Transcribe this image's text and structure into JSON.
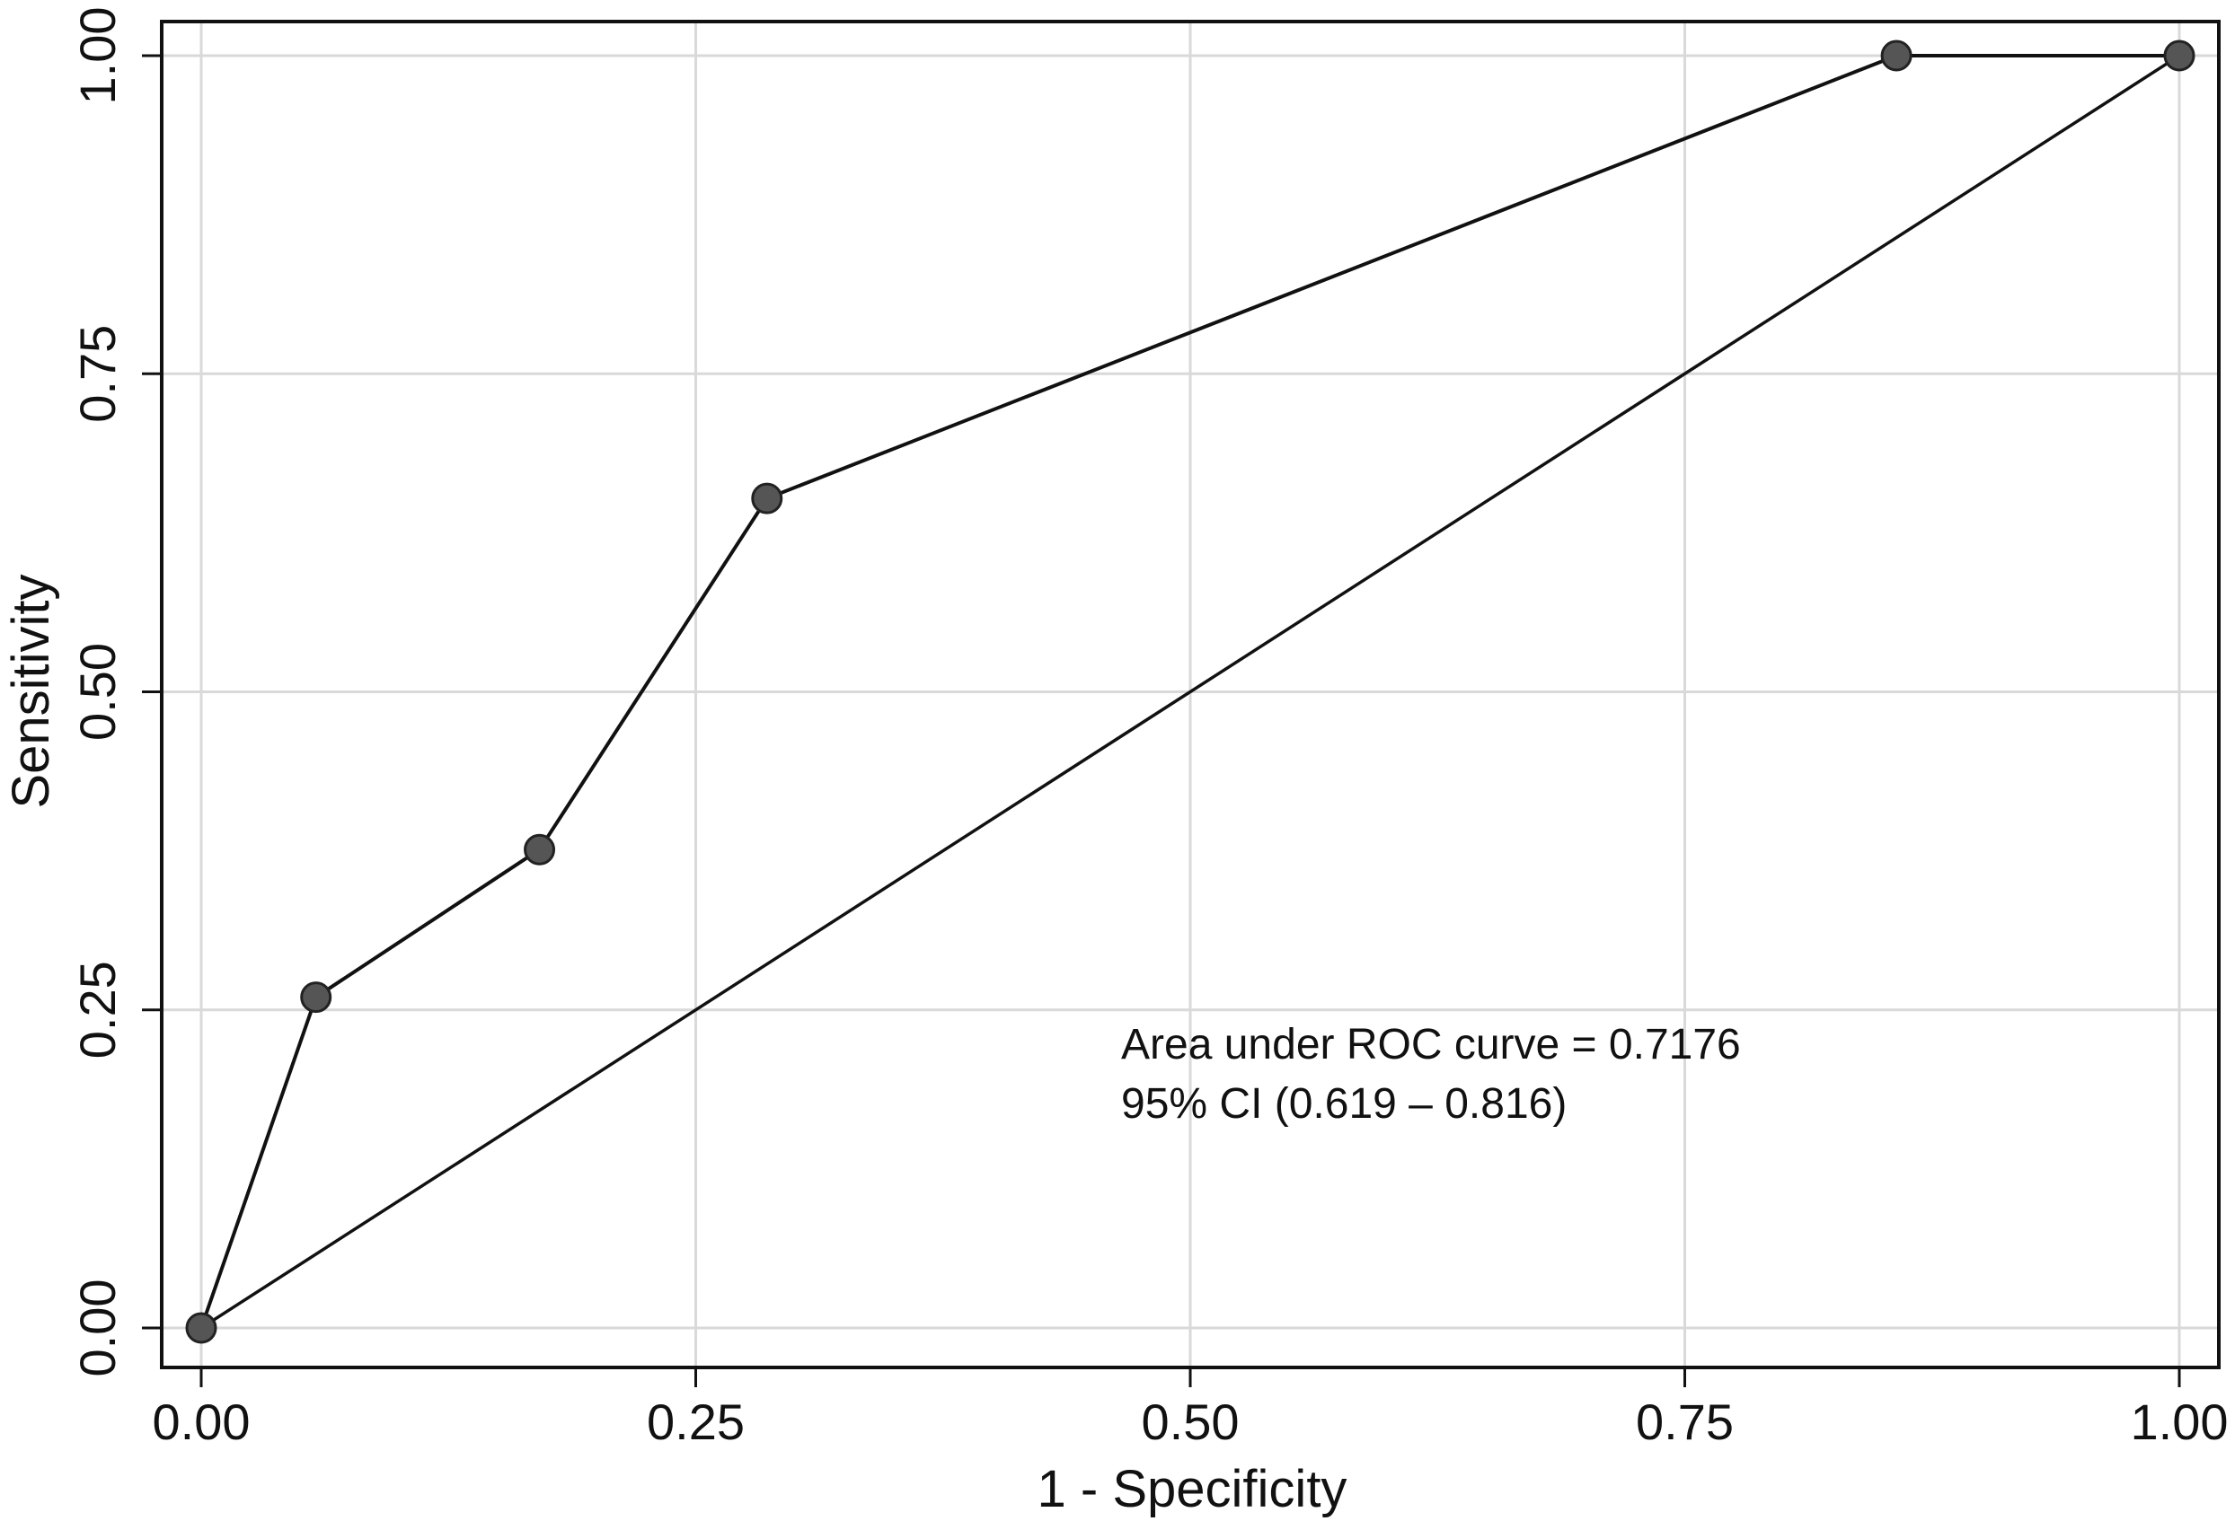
{
  "chart_data": {
    "type": "line",
    "xlabel": "1 - Specificity",
    "ylabel": "Sensitivity",
    "xlim": [
      0,
      1
    ],
    "ylim": [
      0,
      1
    ],
    "x_ticks": [
      "0.00",
      "0.25",
      "0.50",
      "0.75",
      "1.00"
    ],
    "y_ticks": [
      "0.00",
      "0.25",
      "0.50",
      "0.75",
      "1.00"
    ],
    "grid": true,
    "series": [
      {
        "x": [
          0.0,
          0.058,
          0.171,
          0.286,
          0.857,
          1.0
        ],
        "y": [
          0.0,
          0.26,
          0.376,
          0.652,
          1.0,
          1.0
        ],
        "markers": true
      },
      {
        "x": [
          0.0,
          1.0
        ],
        "y": [
          0.0,
          1.0
        ],
        "markers": false
      }
    ],
    "annotations": [
      "Area under ROC curve = 0.7176",
      "95% CI (0.619 – 0.816)"
    ],
    "colors": {
      "line": "#111111",
      "marker_fill": "#555555",
      "grid": "#d9d9d9",
      "frame": "#111111"
    }
  }
}
